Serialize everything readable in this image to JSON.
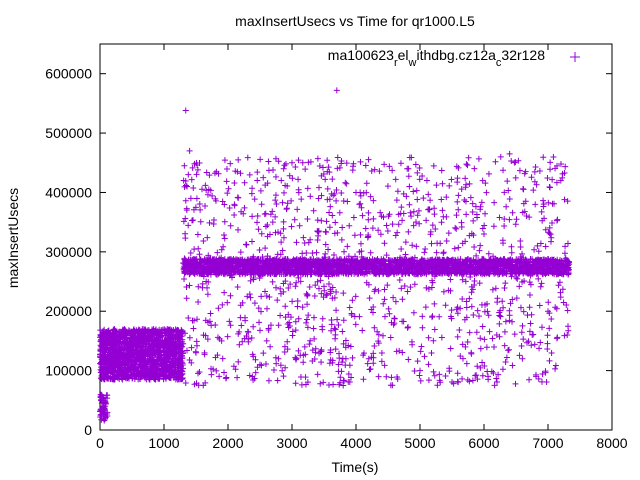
{
  "chart_data": {
    "type": "scatter",
    "title": "maxInsertUsecs vs Time for qr1000.L5",
    "xlabel": "Time(s)",
    "ylabel": "maxInsertUsecs",
    "xlim": [
      0,
      8000
    ],
    "ylim": [
      0,
      650000
    ],
    "x_ticks": [
      0,
      1000,
      2000,
      3000,
      4000,
      5000,
      6000,
      7000,
      8000
    ],
    "y_ticks": [
      0,
      100000,
      200000,
      300000,
      400000,
      500000,
      600000
    ],
    "grid": false,
    "legend_position": "top-right",
    "marker": "+",
    "series": [
      {
        "name": "ma100623_rel_withdbg.cz12a_c32r128",
        "color": "#9400d3",
        "points": [
          [
            10,
            25000
          ],
          [
            20,
            35000
          ],
          [
            30,
            45000
          ],
          [
            40,
            30000
          ],
          [
            60,
            50000
          ],
          [
            80,
            40000
          ],
          [
            20,
            140000
          ],
          [
            60,
            120000
          ],
          [
            100,
            100000
          ],
          [
            140,
            135000
          ],
          [
            200,
            110000
          ],
          [
            260,
            145000
          ],
          [
            320,
            125000
          ],
          [
            400,
            105000
          ],
          [
            480,
            140000
          ],
          [
            560,
            115000
          ],
          [
            640,
            150000
          ],
          [
            720,
            130000
          ],
          [
            800,
            110000
          ],
          [
            880,
            145000
          ],
          [
            960,
            120000
          ],
          [
            1040,
            135000
          ],
          [
            1120,
            105000
          ],
          [
            1200,
            140000
          ],
          [
            1280,
            125000
          ],
          [
            100,
            165000
          ],
          [
            380,
            160000
          ],
          [
            700,
            168000
          ],
          [
            1050,
            170000
          ],
          [
            1340,
            538000
          ],
          [
            1360,
            410000
          ],
          [
            1380,
            430000
          ],
          [
            1400,
            470000
          ],
          [
            1420,
            390000
          ],
          [
            3700,
            572000
          ],
          [
            3800,
            75000
          ],
          [
            1500,
            130000
          ],
          [
            1700,
            405000
          ],
          [
            1900,
            150000
          ],
          [
            2100,
            380000
          ],
          [
            2300,
            225000
          ],
          [
            2500,
            110000
          ],
          [
            2700,
            350000
          ],
          [
            2900,
            190000
          ],
          [
            3000,
            450000
          ],
          [
            3200,
            140000
          ],
          [
            3400,
            320000
          ],
          [
            3600,
            230000
          ],
          [
            4000,
            400000
          ],
          [
            4200,
            120000
          ],
          [
            4400,
            360000
          ],
          [
            4600,
            180000
          ],
          [
            4800,
            440000
          ],
          [
            5000,
            100000
          ],
          [
            5200,
            345000
          ],
          [
            5400,
            210000
          ],
          [
            5600,
            395000
          ],
          [
            5800,
            130000
          ],
          [
            6000,
            330000
          ],
          [
            6200,
            160000
          ],
          [
            6400,
            465000
          ],
          [
            6600,
            120000
          ],
          [
            6800,
            380000
          ],
          [
            7000,
            200000
          ],
          [
            7200,
            420000
          ],
          [
            7300,
            160000
          ]
        ],
        "clusters": [
          {
            "x_range": [
              0,
              120
            ],
            "y_range": [
              15000,
              60000
            ],
            "count": 55
          },
          {
            "x_range": [
              0,
              1300
            ],
            "y_range": [
              85000,
              170000
            ],
            "count": 1600
          },
          {
            "x_range": [
              1300,
              7330
            ],
            "y_range": [
              262000,
              288000
            ],
            "count": 2600
          },
          {
            "x_range": [
              1300,
              7330
            ],
            "y_range": [
              75000,
              460000
            ],
            "count": 1200
          }
        ]
      }
    ]
  }
}
